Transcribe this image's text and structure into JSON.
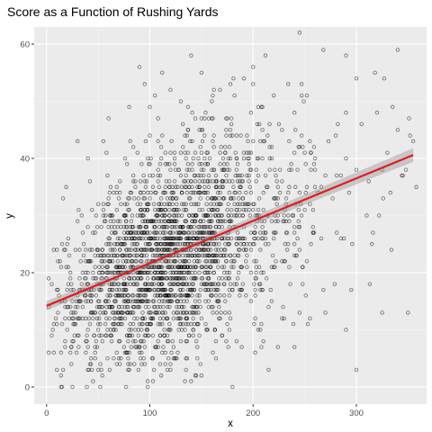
{
  "chart_data": {
    "type": "scatter",
    "title": "Score as a Function of Rushing Yards",
    "xlabel": "x",
    "ylabel": "y",
    "xlim": [
      -12,
      368
    ],
    "ylim": [
      -3,
      63
    ],
    "x_ticks": [
      0,
      100,
      200,
      300
    ],
    "y_ticks": [
      0,
      20,
      40,
      60
    ],
    "x_tick_labels": [
      "0",
      "100",
      "200",
      "300"
    ],
    "y_tick_labels": [
      "0",
      "20",
      "40",
      "60"
    ],
    "grid": true,
    "legend": "none",
    "trend_line": {
      "method": "linear",
      "x": [
        0,
        355
      ],
      "y": [
        14.2,
        40.6
      ],
      "ci_halfwidth": [
        0.5,
        1.2
      ],
      "color": "#e41a1c"
    },
    "point_color": "#000000",
    "panel_background": "#ebebeb",
    "outlier_points": [
      {
        "x": 2,
        "y": 19
      },
      {
        "x": 5,
        "y": 9
      },
      {
        "x": 10,
        "y": 3
      },
      {
        "x": 15,
        "y": 0
      },
      {
        "x": 25,
        "y": 0
      },
      {
        "x": 30,
        "y": 43
      },
      {
        "x": 40,
        "y": 40
      },
      {
        "x": 45,
        "y": 1
      },
      {
        "x": 60,
        "y": 47
      },
      {
        "x": 80,
        "y": 49
      },
      {
        "x": 90,
        "y": 56
      },
      {
        "x": 95,
        "y": 53
      },
      {
        "x": 100,
        "y": 49
      },
      {
        "x": 105,
        "y": 51
      },
      {
        "x": 108,
        "y": 47
      },
      {
        "x": 112,
        "y": 55
      },
      {
        "x": 120,
        "y": 52
      },
      {
        "x": 130,
        "y": 50
      },
      {
        "x": 140,
        "y": 58
      },
      {
        "x": 150,
        "y": 47
      },
      {
        "x": 150,
        "y": 55
      },
      {
        "x": 160,
        "y": 50
      },
      {
        "x": 168,
        "y": 52
      },
      {
        "x": 175,
        "y": 47
      },
      {
        "x": 180,
        "y": 0
      },
      {
        "x": 200,
        "y": 56
      },
      {
        "x": 205,
        "y": 49
      },
      {
        "x": 210,
        "y": 43
      },
      {
        "x": 220,
        "y": 51
      },
      {
        "x": 228,
        "y": 45
      },
      {
        "x": 240,
        "y": 48
      },
      {
        "x": 245,
        "y": 62
      },
      {
        "x": 250,
        "y": 41
      },
      {
        "x": 260,
        "y": 38
      },
      {
        "x": 268,
        "y": 59
      },
      {
        "x": 270,
        "y": 13
      },
      {
        "x": 280,
        "y": 44
      },
      {
        "x": 290,
        "y": 58
      },
      {
        "x": 300,
        "y": 54
      },
      {
        "x": 305,
        "y": 46
      },
      {
        "x": 310,
        "y": 30
      },
      {
        "x": 315,
        "y": 25
      },
      {
        "x": 320,
        "y": 48
      },
      {
        "x": 325,
        "y": 13
      },
      {
        "x": 330,
        "y": 41
      },
      {
        "x": 340,
        "y": 59
      },
      {
        "x": 345,
        "y": 37
      },
      {
        "x": 350,
        "y": 13
      },
      {
        "x": 352,
        "y": 44
      },
      {
        "x": 358,
        "y": 35
      },
      {
        "x": 300,
        "y": 3
      },
      {
        "x": 290,
        "y": 10
      },
      {
        "x": 240,
        "y": 7
      },
      {
        "x": 215,
        "y": 3
      }
    ]
  }
}
